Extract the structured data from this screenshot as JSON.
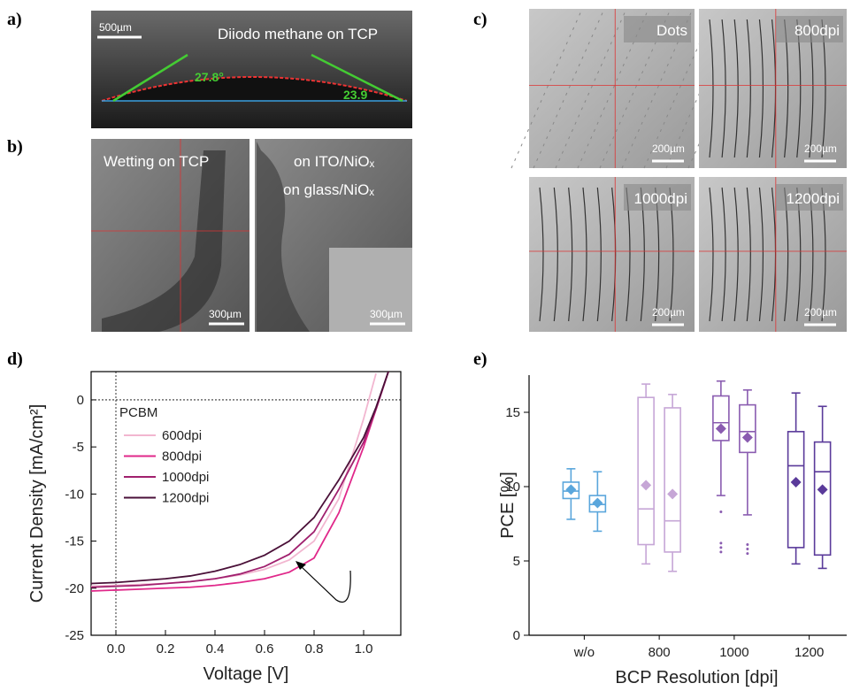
{
  "panel_labels": [
    "a)",
    "b)",
    "c)",
    "d)",
    "e)"
  ],
  "images": {
    "a": {
      "title": "Diiodo methane on TCP",
      "scale": "500µm",
      "angle_left": "27.8°",
      "angle_right": "23.9"
    },
    "b": [
      {
        "title": "Wetting on TCP",
        "scale": "300µm"
      },
      {
        "line1": "on ITO/NiOₓ",
        "line2": "on glass/NiOₓ",
        "scale": "300µm"
      }
    ],
    "c": [
      {
        "label": "Dots",
        "scale": "200µm"
      },
      {
        "label": "800dpi",
        "scale": "200µm"
      },
      {
        "label": "1000dpi",
        "scale": "200µm"
      },
      {
        "label": "1200dpi",
        "scale": "200µm"
      }
    ]
  },
  "chart_data": [
    {
      "type": "line",
      "x_label": "Voltage [V]",
      "y_label": "Current Density [mA/cm²]",
      "legend_title": "PCBM",
      "x": [
        -0.1,
        0,
        0.1,
        0.2,
        0.3,
        0.4,
        0.5,
        0.6,
        0.7,
        0.8,
        0.9,
        1.0,
        1.05,
        1.1
      ],
      "series": [
        {
          "name": "600dpi",
          "color": "#f2b6d0",
          "values": [
            -19.8,
            -19.7,
            -19.6,
            -19.5,
            -19.3,
            -19.0,
            -18.6,
            -18.0,
            -17.0,
            -15.0,
            -10.5,
            -2.0,
            2.8,
            null
          ]
        },
        {
          "name": "800dpi",
          "color": "#e0288a",
          "values": [
            -20.3,
            -20.2,
            -20.1,
            -20.0,
            -19.9,
            -19.7,
            -19.4,
            -19.0,
            -18.3,
            -16.8,
            -12.0,
            -5.0,
            -1.0,
            3.0
          ]
        },
        {
          "name": "1000dpi",
          "color": "#a0206e",
          "values": [
            -19.9,
            -19.8,
            -19.7,
            -19.5,
            -19.3,
            -19.0,
            -18.5,
            -17.7,
            -16.4,
            -14.0,
            -9.5,
            -4.5,
            -1.0,
            3.0
          ]
        },
        {
          "name": "1200dpi",
          "color": "#4a1038",
          "values": [
            -19.5,
            -19.4,
            -19.2,
            -19.0,
            -18.7,
            -18.2,
            -17.5,
            -16.5,
            -15.0,
            -12.5,
            -8.5,
            -4.0,
            -0.8,
            3.0
          ]
        }
      ],
      "xlim": [
        -0.1,
        1.15
      ],
      "ylim": [
        -25,
        3
      ],
      "xticks": [
        {
          "value": 0,
          "label": "0.0"
        },
        {
          "value": 0.2,
          "label": "0.2"
        },
        {
          "value": 0.4,
          "label": "0.4"
        },
        {
          "value": 0.6,
          "label": "0.6"
        },
        {
          "value": 0.8,
          "label": "0.8"
        },
        {
          "value": 1,
          "label": "1.0"
        }
      ],
      "yticks": [
        0,
        -5,
        -10,
        -15,
        -20,
        -25
      ]
    },
    {
      "type": "box",
      "x_label": "BCP Resolution [dpi]",
      "y_label": "PCE [%]",
      "categories": [
        "w/o",
        "800",
        "1000",
        "1200"
      ],
      "colors": [
        "#5aa6dc",
        "#c6a6d6",
        "#8a5cb0",
        "#5a3a9a"
      ],
      "boxes": [
        [
          {
            "whisker_low": 7.8,
            "q1": 9.2,
            "median": 9.7,
            "q3": 10.3,
            "whisker_high": 11.2,
            "mean": 9.8,
            "outliers": []
          },
          {
            "whisker_low": 7.0,
            "q1": 8.3,
            "median": 8.8,
            "q3": 9.4,
            "whisker_high": 11.0,
            "mean": 8.9,
            "outliers": []
          }
        ],
        [
          {
            "whisker_low": 4.8,
            "q1": 6.1,
            "median": 8.5,
            "q3": 16.0,
            "whisker_high": 16.9,
            "mean": 10.1,
            "outliers": []
          },
          {
            "whisker_low": 4.3,
            "q1": 5.6,
            "median": 7.7,
            "q3": 15.3,
            "whisker_high": 16.2,
            "mean": 9.5,
            "outliers": []
          }
        ],
        [
          {
            "whisker_low": 9.4,
            "q1": 13.1,
            "median": 14.3,
            "q3": 16.1,
            "whisker_high": 17.1,
            "mean": 13.9,
            "outliers": [
              8.3,
              6.2,
              5.9,
              5.6
            ]
          },
          {
            "whisker_low": 8.1,
            "q1": 12.3,
            "median": 13.7,
            "q3": 15.5,
            "whisker_high": 16.5,
            "mean": 13.3,
            "outliers": [
              6.1,
              5.8,
              5.5
            ]
          }
        ],
        [
          {
            "whisker_low": 4.8,
            "q1": 5.9,
            "median": 11.4,
            "q3": 13.7,
            "whisker_high": 16.3,
            "mean": 10.3,
            "outliers": []
          },
          {
            "whisker_low": 4.5,
            "q1": 5.4,
            "median": 11.0,
            "q3": 13.0,
            "whisker_high": 15.4,
            "mean": 9.8,
            "outliers": []
          }
        ]
      ],
      "ylim": [
        0,
        17.5
      ],
      "yticks": [
        0,
        5,
        10,
        15
      ]
    }
  ]
}
